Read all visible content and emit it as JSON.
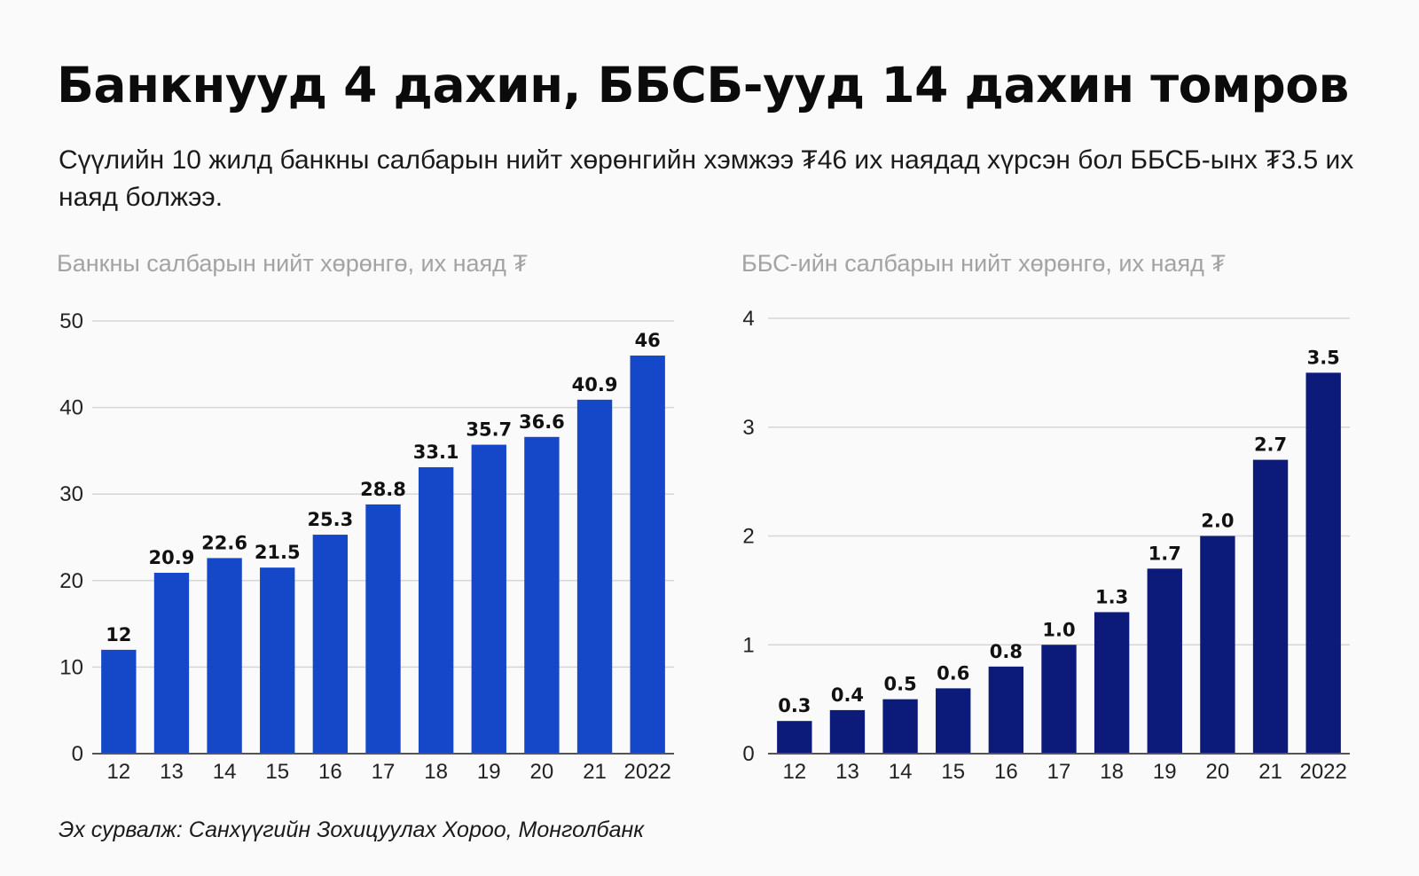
{
  "title": "Банкнууд 4 дахин, ББСБ-ууд 14 дахин томров",
  "subtitle": "Сүүлийн 10 жилд банкны салбарын нийт хөрөнгийн хэмжээ ₮46 их наядад хүрсэн бол ББСБ-ынх ₮3.5 их наяд болжээ.",
  "source": "Эх сурвалж: Санхүүгийн Зохицуулах Хороо, Монголбанк",
  "colors": {
    "bank_bar": "#1448c8",
    "nbfi_bar": "#0c1a7a",
    "grid": "#d6d6d6",
    "axis": "#555555",
    "chart_title": "#a3a3a3"
  },
  "chart_data": [
    {
      "type": "bar",
      "title": "Банкны салбарын нийт хөрөнгө, их наяд ₮",
      "categories": [
        "12",
        "13",
        "14",
        "15",
        "16",
        "17",
        "18",
        "19",
        "20",
        "21",
        "2022"
      ],
      "values": [
        12,
        20.9,
        22.6,
        21.5,
        25.3,
        28.8,
        33.1,
        35.7,
        36.6,
        40.9,
        46
      ],
      "value_labels": [
        "12",
        "20.9",
        "22.6",
        "21.5",
        "25.3",
        "28.8",
        "33.1",
        "35.7",
        "36.6",
        "40.9",
        "46"
      ],
      "ylim": [
        0,
        50
      ],
      "yticks": [
        0,
        10,
        20,
        30,
        40,
        50
      ],
      "grid": true,
      "color": "#1448c8"
    },
    {
      "type": "bar",
      "title": "ББС-ийн салбарын нийт хөрөнгө, их наяд ₮",
      "categories": [
        "12",
        "13",
        "14",
        "15",
        "16",
        "17",
        "18",
        "19",
        "20",
        "21",
        "2022"
      ],
      "values": [
        0.3,
        0.4,
        0.5,
        0.6,
        0.8,
        1.0,
        1.3,
        1.7,
        2.0,
        2.7,
        3.5
      ],
      "value_labels": [
        "0.3",
        "0.4",
        "0.5",
        "0.6",
        "0.8",
        "1.0",
        "1.3",
        "1.7",
        "2.0",
        "2.7",
        "3.5"
      ],
      "ylim": [
        0,
        4
      ],
      "yticks": [
        0,
        1,
        2,
        3,
        4
      ],
      "grid": true,
      "color": "#0c1a7a"
    }
  ]
}
